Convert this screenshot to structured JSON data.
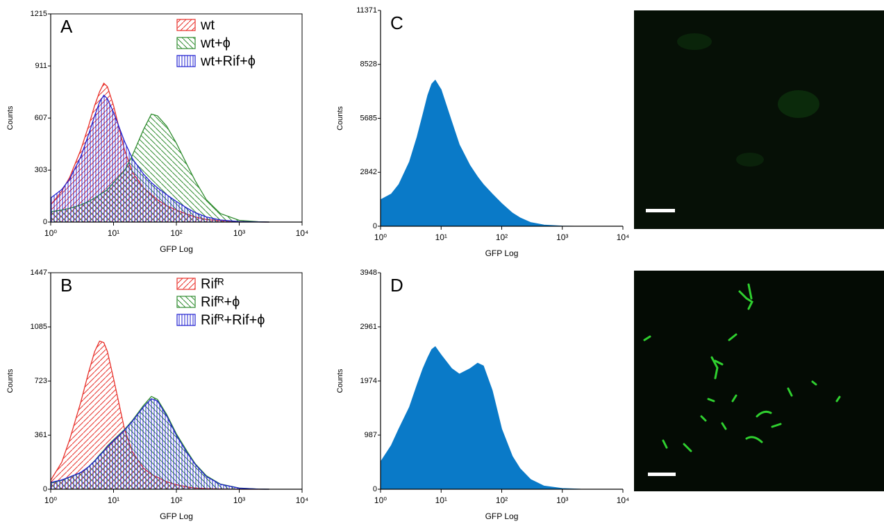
{
  "chart_data": [
    {
      "type": "line",
      "title": "A",
      "x_label": "GFP Log",
      "y_label": "Counts",
      "log_x": true,
      "x": [
        1,
        1.5,
        2,
        3,
        4,
        5,
        6,
        7,
        8,
        10,
        15,
        20,
        30,
        40,
        50,
        70,
        100,
        150,
        200,
        300,
        500,
        1000,
        2000,
        3000
      ],
      "xlim": [
        1,
        10000
      ],
      "xticks": [
        {
          "value": 1,
          "label": "10⁰"
        },
        {
          "value": 10,
          "label": "10¹"
        },
        {
          "value": 100,
          "label": "10²"
        },
        {
          "value": 1000,
          "label": "10³"
        },
        {
          "value": 10000,
          "label": "10⁴"
        }
      ],
      "ylim": [
        0,
        1215
      ],
      "yticks": [
        0,
        303,
        607,
        911,
        1215
      ],
      "legend": "upper right",
      "series": [
        {
          "name": "wt",
          "color": "#e8302a",
          "values": [
            100,
            180,
            260,
            420,
            560,
            680,
            760,
            810,
            790,
            680,
            420,
            290,
            200,
            160,
            130,
            95,
            70,
            45,
            30,
            15,
            8,
            3,
            1,
            0
          ]
        },
        {
          "name": "wt+ϕ",
          "color": "#2e8b2e",
          "values": [
            60,
            70,
            80,
            100,
            120,
            140,
            160,
            175,
            190,
            230,
            300,
            390,
            540,
            630,
            620,
            560,
            460,
            330,
            240,
            130,
            50,
            10,
            2,
            0
          ]
        },
        {
          "name": "wt+Rif+ϕ",
          "color": "#2020d0",
          "values": [
            140,
            190,
            250,
            380,
            510,
            620,
            700,
            740,
            720,
            640,
            470,
            370,
            280,
            230,
            200,
            160,
            120,
            80,
            55,
            30,
            12,
            3,
            1,
            0
          ]
        }
      ]
    },
    {
      "type": "line",
      "title": "B",
      "x_label": "GFP Log",
      "y_label": "Counts",
      "log_x": true,
      "x": [
        1,
        1.5,
        2,
        3,
        4,
        5,
        6,
        7,
        8,
        10,
        15,
        20,
        30,
        40,
        50,
        70,
        100,
        150,
        200,
        300,
        500,
        1000,
        2000,
        3000
      ],
      "xlim": [
        1,
        10000
      ],
      "xticks": [
        {
          "value": 1,
          "label": "10⁰"
        },
        {
          "value": 10,
          "label": "10¹"
        },
        {
          "value": 100,
          "label": "10²"
        },
        {
          "value": 1000,
          "label": "10³"
        },
        {
          "value": 10000,
          "label": "10⁴"
        }
      ],
      "ylim": [
        0,
        1447
      ],
      "yticks": [
        0,
        361,
        723,
        1085,
        1447
      ],
      "legend": "upper right",
      "series": [
        {
          "name": "Rifᴿ",
          "color": "#e8302a",
          "values": [
            60,
            180,
            330,
            580,
            780,
            920,
            990,
            980,
            920,
            740,
            400,
            250,
            140,
            100,
            80,
            50,
            30,
            15,
            8,
            4,
            2,
            0,
            0,
            0
          ]
        },
        {
          "name": "Rifᴿ+ϕ",
          "color": "#2e8b2e",
          "values": [
            40,
            60,
            80,
            110,
            150,
            190,
            230,
            260,
            290,
            330,
            400,
            460,
            560,
            620,
            600,
            500,
            370,
            250,
            170,
            90,
            35,
            8,
            1,
            0
          ]
        },
        {
          "name": "Rifᴿ+Rif+ϕ",
          "color": "#2020d0",
          "values": [
            45,
            62,
            82,
            112,
            150,
            188,
            225,
            255,
            285,
            325,
            395,
            455,
            550,
            605,
            590,
            490,
            360,
            240,
            165,
            85,
            33,
            7,
            1,
            0
          ]
        }
      ]
    },
    {
      "type": "area",
      "title": "C",
      "x_label": "GFP Log",
      "y_label": "Counts",
      "log_x": true,
      "x": [
        1,
        1.5,
        2,
        3,
        4,
        5,
        6,
        7,
        8,
        10,
        15,
        20,
        30,
        40,
        50,
        70,
        100,
        150,
        200,
        300,
        500,
        1000,
        2000,
        3000
      ],
      "xlim": [
        1,
        10000
      ],
      "xticks": [
        {
          "value": 1,
          "label": "10⁰"
        },
        {
          "value": 10,
          "label": "10¹"
        },
        {
          "value": 100,
          "label": "10²"
        },
        {
          "value": 1000,
          "label": "10³"
        },
        {
          "value": 10000,
          "label": "10⁴"
        }
      ],
      "ylim": [
        0,
        11371
      ],
      "yticks": [
        0,
        2842,
        5685,
        8528,
        11371
      ],
      "series": [
        {
          "color": "#0a7ac8",
          "values": [
            1400,
            1700,
            2200,
            3400,
            4700,
            5900,
            6900,
            7500,
            7700,
            7200,
            5500,
            4300,
            3200,
            2600,
            2200,
            1700,
            1200,
            700,
            450,
            200,
            70,
            10,
            0,
            0
          ]
        }
      ]
    },
    {
      "type": "area",
      "title": "D",
      "x_label": "GFP Log",
      "y_label": "Counts",
      "log_x": true,
      "x": [
        1,
        1.5,
        2,
        3,
        4,
        5,
        6,
        7,
        8,
        10,
        15,
        20,
        30,
        40,
        50,
        70,
        100,
        150,
        200,
        300,
        500,
        1000,
        2000,
        3000
      ],
      "xlim": [
        1,
        10000
      ],
      "xticks": [
        {
          "value": 1,
          "label": "10⁰"
        },
        {
          "value": 10,
          "label": "10¹"
        },
        {
          "value": 100,
          "label": "10²"
        },
        {
          "value": 1000,
          "label": "10³"
        },
        {
          "value": 10000,
          "label": "10⁴"
        }
      ],
      "ylim": [
        0,
        3948
      ],
      "yticks": [
        0,
        987,
        1974,
        2961,
        3948
      ],
      "series": [
        {
          "color": "#0a7ac8",
          "values": [
            500,
            800,
            1100,
            1500,
            1900,
            2200,
            2400,
            2550,
            2600,
            2450,
            2200,
            2100,
            2200,
            2300,
            2250,
            1800,
            1100,
            600,
            380,
            180,
            60,
            15,
            2,
            0
          ]
        }
      ]
    }
  ]
}
